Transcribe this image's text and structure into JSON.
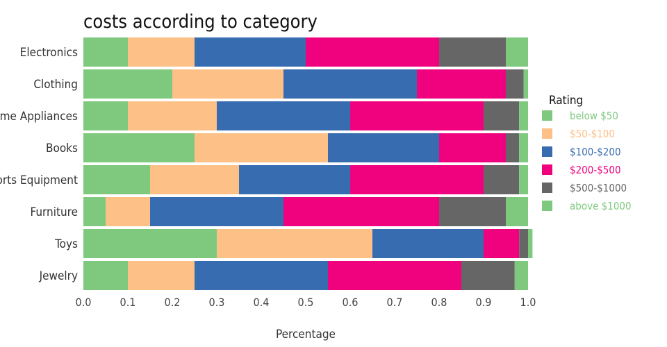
{
  "chart_data": {
    "type": "bar",
    "orientation": "horizontal",
    "stacked": true,
    "title": "costs according to category",
    "xlabel": "Percentage",
    "ylabel": "",
    "xlim": [
      0,
      1.0
    ],
    "x_ticks": [
      "0.0",
      "0.1",
      "0.2",
      "0.3",
      "0.4",
      "0.5",
      "0.6",
      "0.7",
      "0.8",
      "0.9",
      "1.0"
    ],
    "categories": [
      "Electronics",
      "Clothing",
      "Home Appliances",
      "Books",
      "Sports Equipment",
      "Furniture",
      "Toys",
      "Jewelry"
    ],
    "legend": {
      "title": "Rating",
      "placement": "right"
    },
    "series": [
      {
        "name": "below $50",
        "color": "#7fc97f",
        "values": [
          0.1,
          0.2,
          0.1,
          0.25,
          0.15,
          0.05,
          0.3,
          0.1
        ]
      },
      {
        "name": "$50-$100",
        "color": "#fdc086",
        "values": [
          0.15,
          0.25,
          0.2,
          0.3,
          0.2,
          0.1,
          0.35,
          0.15
        ]
      },
      {
        "name": "$100-$200",
        "color": "#386cb0",
        "values": [
          0.25,
          0.3,
          0.3,
          0.25,
          0.25,
          0.3,
          0.25,
          0.3
        ]
      },
      {
        "name": "$200-$500",
        "color": "#f0027f",
        "values": [
          0.3,
          0.2,
          0.3,
          0.15,
          0.3,
          0.35,
          0.08,
          0.3
        ]
      },
      {
        "name": "$500-$1000",
        "color": "#666666",
        "values": [
          0.15,
          0.04,
          0.08,
          0.03,
          0.08,
          0.15,
          0.02,
          0.12
        ]
      },
      {
        "name": "above $1000",
        "color": "#7fc97f",
        "values": [
          0.05,
          0.01,
          0.02,
          0.02,
          0.02,
          0.05,
          0.01,
          0.03
        ]
      }
    ]
  }
}
